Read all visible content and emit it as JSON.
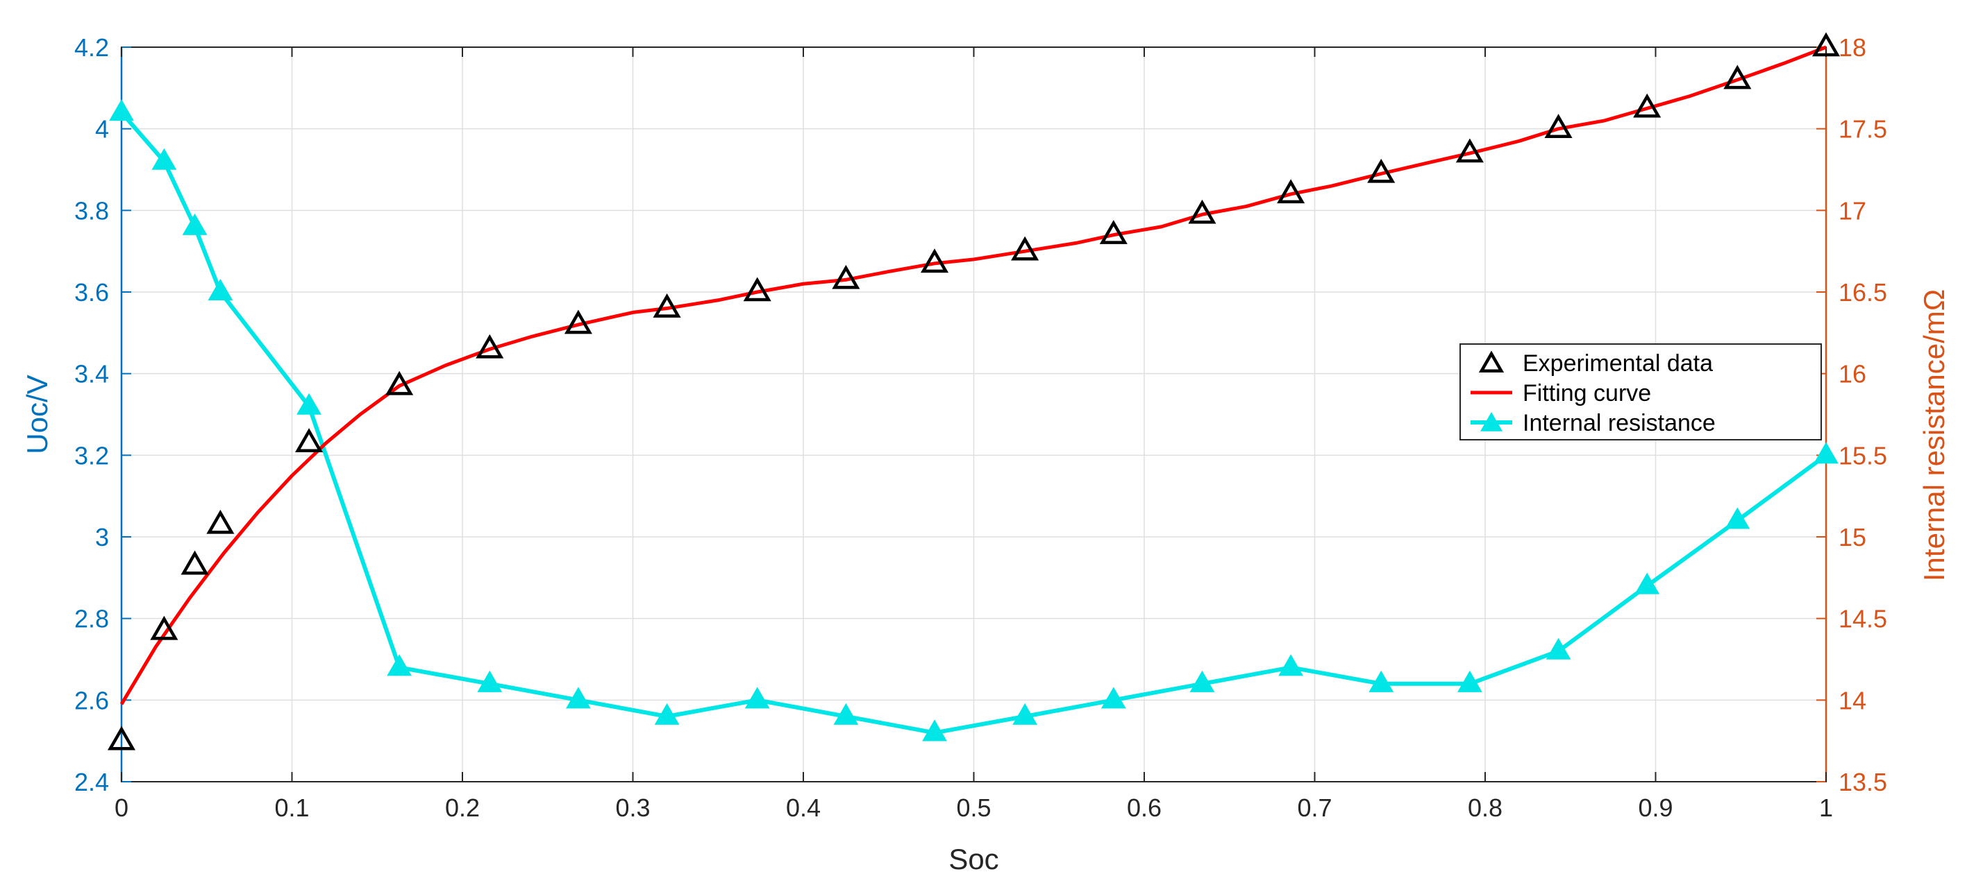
{
  "chart_data": {
    "type": "line",
    "xlabel": "Soc",
    "ylabel_left": "Uoc/V",
    "ylabel_right": "Internal resistance/mΩ",
    "xlim": [
      0,
      1
    ],
    "ylim_left": [
      2.4,
      4.2
    ],
    "ylim_right": [
      13.5,
      18
    ],
    "x_ticks": [
      "0",
      "0.1",
      "0.2",
      "0.3",
      "0.4",
      "0.5",
      "0.6",
      "0.7",
      "0.8",
      "0.9",
      "1"
    ],
    "left_ticks": [
      "2.4",
      "2.6",
      "2.8",
      "3",
      "3.2",
      "3.4",
      "3.6",
      "3.8",
      "4",
      "4.2"
    ],
    "right_ticks": [
      "13.5",
      "14",
      "14.5",
      "15",
      "15.5",
      "16",
      "16.5",
      "17",
      "17.5",
      "18"
    ],
    "grid": true,
    "legend_position": "right",
    "series": [
      {
        "name": "Experimental data",
        "axis": "left",
        "style": "markers",
        "marker": "triangle-open",
        "color": "#000000",
        "x": [
          0,
          0.025,
          0.043,
          0.058,
          0.11,
          0.163,
          0.216,
          0.268,
          0.32,
          0.373,
          0.425,
          0.477,
          0.53,
          0.582,
          0.634,
          0.686,
          0.739,
          0.791,
          0.843,
          0.895,
          0.948,
          1.0
        ],
        "y": [
          2.5,
          2.77,
          2.93,
          3.03,
          3.23,
          3.37,
          3.46,
          3.52,
          3.56,
          3.6,
          3.63,
          3.67,
          3.7,
          3.74,
          3.79,
          3.84,
          3.89,
          3.94,
          4.0,
          4.05,
          4.12,
          4.2
        ]
      },
      {
        "name": "Fitting curve",
        "axis": "left",
        "style": "line",
        "color": "#ff0000",
        "x": [
          0,
          0.02,
          0.04,
          0.06,
          0.08,
          0.1,
          0.12,
          0.14,
          0.163,
          0.19,
          0.216,
          0.24,
          0.268,
          0.3,
          0.32,
          0.35,
          0.373,
          0.4,
          0.425,
          0.45,
          0.477,
          0.5,
          0.53,
          0.56,
          0.582,
          0.61,
          0.634,
          0.66,
          0.686,
          0.71,
          0.739,
          0.77,
          0.791,
          0.82,
          0.843,
          0.87,
          0.895,
          0.92,
          0.948,
          0.975,
          1.0
        ],
        "y": [
          2.59,
          2.73,
          2.85,
          2.96,
          3.06,
          3.15,
          3.23,
          3.3,
          3.37,
          3.42,
          3.46,
          3.49,
          3.52,
          3.55,
          3.56,
          3.58,
          3.6,
          3.62,
          3.63,
          3.65,
          3.67,
          3.68,
          3.7,
          3.72,
          3.74,
          3.76,
          3.79,
          3.81,
          3.84,
          3.86,
          3.89,
          3.92,
          3.94,
          3.97,
          4.0,
          4.02,
          4.05,
          4.08,
          4.12,
          4.16,
          4.2
        ]
      },
      {
        "name": "Internal resistance",
        "axis": "right",
        "style": "line-markers",
        "marker": "triangle-filled",
        "color": "#00e5e5",
        "x": [
          0,
          0.025,
          0.043,
          0.058,
          0.11,
          0.163,
          0.216,
          0.268,
          0.32,
          0.373,
          0.425,
          0.477,
          0.53,
          0.582,
          0.634,
          0.686,
          0.739,
          0.791,
          0.843,
          0.895,
          0.948,
          1.0
        ],
        "y": [
          17.6,
          17.3,
          16.9,
          16.5,
          15.8,
          14.2,
          14.1,
          14.0,
          13.9,
          14.0,
          13.9,
          13.8,
          13.9,
          14.0,
          14.1,
          14.2,
          14.1,
          14.1,
          14.3,
          14.7,
          15.1,
          15.5
        ]
      }
    ]
  },
  "colors": {
    "left_axis": "#0072bd",
    "right_axis": "#d95319",
    "grid": "#dfdfdf",
    "frame": "#262626"
  }
}
